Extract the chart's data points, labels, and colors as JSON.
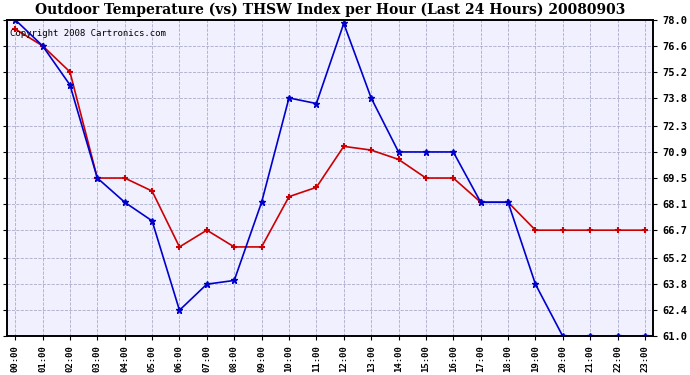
{
  "title": "Outdoor Temperature (vs) THSW Index per Hour (Last 24 Hours) 20080903",
  "copyright": "Copyright 2008 Cartronics.com",
  "hours": [
    0,
    1,
    2,
    3,
    4,
    5,
    6,
    7,
    8,
    9,
    10,
    11,
    12,
    13,
    14,
    15,
    16,
    17,
    18,
    19,
    20,
    21,
    22,
    23
  ],
  "hour_labels": [
    "00:00",
    "01:00",
    "02:00",
    "03:00",
    "04:00",
    "05:00",
    "06:00",
    "07:00",
    "08:00",
    "09:00",
    "10:00",
    "11:00",
    "12:00",
    "13:00",
    "14:00",
    "15:00",
    "16:00",
    "17:00",
    "18:00",
    "19:00",
    "20:00",
    "21:00",
    "22:00",
    "23:00"
  ],
  "red_temp": [
    77.5,
    76.6,
    75.2,
    69.5,
    69.5,
    68.8,
    65.8,
    66.7,
    65.8,
    65.8,
    68.5,
    69.0,
    71.2,
    71.0,
    70.5,
    69.5,
    69.5,
    68.2,
    68.2,
    66.7,
    66.7,
    66.7,
    66.7,
    66.7
  ],
  "blue_thsw": [
    78.0,
    76.6,
    74.5,
    69.5,
    68.2,
    67.2,
    62.4,
    63.8,
    64.0,
    68.2,
    73.8,
    73.5,
    77.8,
    73.8,
    70.9,
    70.9,
    70.9,
    68.2,
    68.2,
    63.8,
    61.0,
    61.0,
    61.0,
    61.0
  ],
  "ymin": 61.0,
  "ymax": 78.0,
  "yticks": [
    78.0,
    76.6,
    75.2,
    73.8,
    72.3,
    70.9,
    69.5,
    68.1,
    66.7,
    65.2,
    63.8,
    62.4,
    61.0
  ],
  "red_color": "#cc0000",
  "blue_color": "#0000cc",
  "bg_color": "#f0f0ff",
  "grid_color": "#aaaacc",
  "title_fontsize": 10,
  "copyright_fontsize": 6.5
}
